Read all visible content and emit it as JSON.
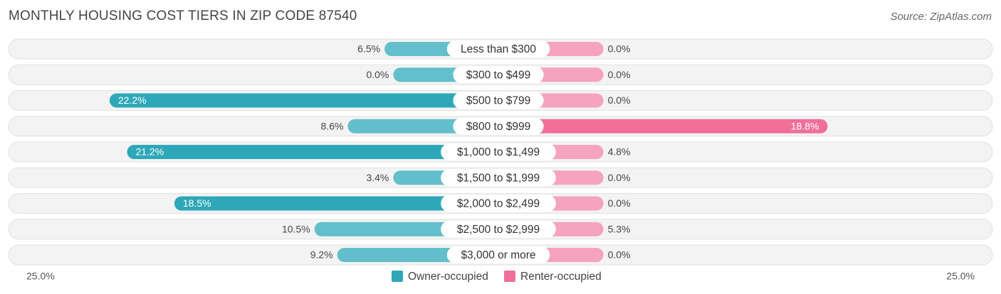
{
  "title": "MONTHLY HOUSING COST TIERS IN ZIP CODE 87540",
  "source": "Source: ZipAtlas.com",
  "chart_data": {
    "type": "bar",
    "orientation": "horizontal-diverging",
    "categories": [
      "Less than $300",
      "$300 to $499",
      "$500 to $799",
      "$800 to $999",
      "$1,000 to $1,499",
      "$1,500 to $1,999",
      "$2,000 to $2,499",
      "$2,500 to $2,999",
      "$3,000 or more"
    ],
    "series": [
      {
        "name": "Owner-occupied",
        "values": [
          6.5,
          0.0,
          22.2,
          8.6,
          21.2,
          3.4,
          18.5,
          10.5,
          9.2
        ],
        "labels": [
          "6.5%",
          "0.0%",
          "22.2%",
          "8.6%",
          "21.2%",
          "3.4%",
          "18.5%",
          "10.5%",
          "9.2%"
        ],
        "color": "#62bfcb",
        "color_strong": "#2ea8b8"
      },
      {
        "name": "Renter-occupied",
        "values": [
          0.0,
          0.0,
          0.0,
          18.8,
          4.8,
          0.0,
          0.0,
          5.3,
          0.0
        ],
        "labels": [
          "0.0%",
          "0.0%",
          "0.0%",
          "18.8%",
          "4.8%",
          "0.0%",
          "0.0%",
          "5.3%",
          "0.0%"
        ],
        "color": "#f5a3bf",
        "color_strong": "#f0709a"
      }
    ],
    "axis_left_label": "25.0%",
    "axis_right_label": "25.0%",
    "xlim": [
      -25,
      25
    ],
    "legend_position": "bottom-center",
    "grid": false
  }
}
